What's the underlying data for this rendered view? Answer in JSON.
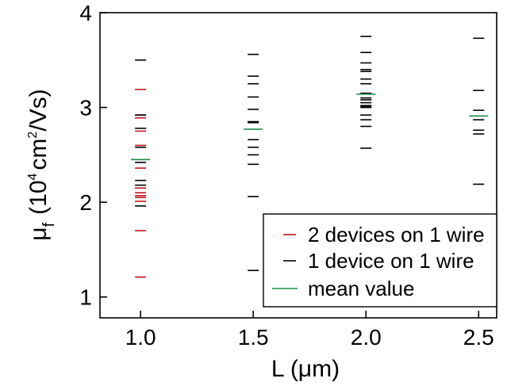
{
  "chart_data": {
    "type": "scatter",
    "xlabel": "L (μm)",
    "ylabel_main": "μ",
    "ylabel_sub": "f",
    "ylabel_unit_prefix": "(10",
    "ylabel_unit_exp4": "4",
    "ylabel_unit_mid": "cm",
    "ylabel_unit_exp2": "2",
    "ylabel_unit_suffix": "/Vs)",
    "xlim": [
      0.82,
      2.58
    ],
    "ylim": [
      0.78,
      4.0
    ],
    "xticks": [
      1.0,
      1.5,
      2.0,
      2.5
    ],
    "xtick_labels": [
      "1.0",
      "1.5",
      "2.0",
      "2.5"
    ],
    "yticks": [
      1,
      2,
      3,
      4
    ],
    "ytick_labels": [
      "1",
      "2",
      "3",
      "4"
    ],
    "legend_position": "bottom-right",
    "series": [
      {
        "name": "2 devices on 1 wire",
        "color": "#c0141c",
        "marker": "hline",
        "x": [
          1.0,
          1.0,
          1.0,
          1.0,
          1.0,
          1.0,
          1.0,
          1.0,
          1.0,
          1.0,
          1.0,
          1.0,
          1.0,
          1.0
        ],
        "y": [
          3.19,
          2.92,
          2.89,
          2.75,
          2.6,
          2.45,
          2.36,
          2.15,
          2.1,
          2.07,
          2.05,
          2.01,
          1.7,
          1.21
        ]
      },
      {
        "name": "1 device on 1 wire",
        "color": "#000000",
        "marker": "hline",
        "x": [
          1.0,
          1.0,
          1.0,
          1.0,
          1.0,
          1.0,
          1.0,
          1.0,
          1.5,
          1.5,
          1.5,
          1.5,
          1.5,
          1.5,
          1.5,
          1.5,
          1.5,
          1.5,
          1.5,
          1.5,
          1.5,
          2.0,
          2.0,
          2.0,
          2.0,
          2.0,
          2.0,
          2.0,
          2.0,
          2.0,
          2.0,
          2.0,
          2.0,
          2.0,
          2.0,
          2.0,
          2.0,
          2.0,
          2.0,
          2.5,
          2.5,
          2.5,
          2.5,
          2.5,
          2.5,
          2.5
        ],
        "y": [
          3.5,
          2.92,
          2.78,
          2.58,
          2.42,
          2.23,
          2.18,
          1.96,
          3.56,
          3.33,
          3.25,
          3.11,
          2.98,
          2.85,
          2.84,
          2.66,
          2.58,
          2.5,
          2.4,
          2.06,
          1.28,
          3.75,
          3.58,
          3.47,
          3.4,
          3.38,
          3.3,
          3.25,
          3.15,
          3.1,
          3.08,
          3.05,
          3.02,
          3.01,
          3.0,
          2.92,
          2.87,
          2.8,
          2.57,
          3.73,
          3.18,
          2.97,
          2.87,
          2.76,
          2.72,
          2.19
        ]
      },
      {
        "name": "mean value",
        "color": "#1e8c4a",
        "marker": "hline-wide",
        "x": [
          1.0,
          1.5,
          2.0,
          2.5
        ],
        "y": [
          2.45,
          2.77,
          3.14,
          2.91
        ]
      }
    ]
  }
}
